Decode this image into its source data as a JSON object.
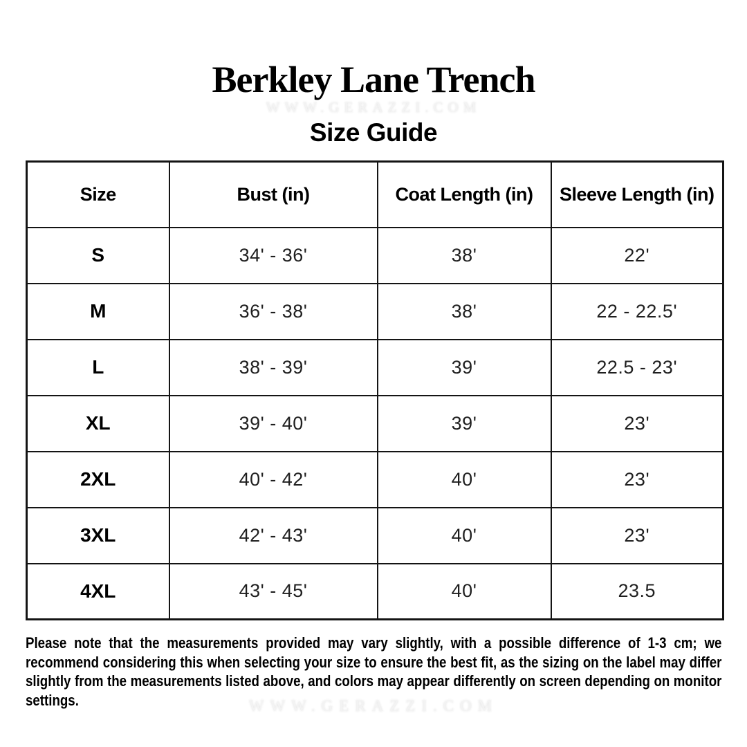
{
  "header": {
    "title": "Berkley Lane Trench",
    "subtitle": "Size Guide",
    "watermark": "WWW.GERAZZI.COM"
  },
  "table": {
    "headers": [
      "Size",
      "Bust (in)",
      "Coat Length (in)",
      "Sleeve Length (in)"
    ],
    "rows": [
      {
        "size": "S",
        "bust": "34' - 36'",
        "coat": "38'",
        "sleeve": "22'"
      },
      {
        "size": "M",
        "bust": "36' - 38'",
        "coat": "38'",
        "sleeve": "22 - 22.5'"
      },
      {
        "size": "L",
        "bust": "38' - 39'",
        "coat": "39'",
        "sleeve": "22.5 - 23'"
      },
      {
        "size": "XL",
        "bust": "39' - 40'",
        "coat": "39'",
        "sleeve": "23'"
      },
      {
        "size": "2XL",
        "bust": "40' - 42'",
        "coat": "40'",
        "sleeve": "23'"
      },
      {
        "size": "3XL",
        "bust": "42' - 43'",
        "coat": "40'",
        "sleeve": "23'"
      },
      {
        "size": "4XL",
        "bust": "43' - 45'",
        "coat": "40'",
        "sleeve": "23.5"
      }
    ]
  },
  "note": "Please note that the measurements provided may vary slightly, with a possible difference of 1-3 cm; we recommend considering this when selecting your size to ensure the best fit, as the sizing on the label may differ slightly from the measurements listed above, and colors may appear differently on screen depending on monitor settings.",
  "footer": {
    "watermark": "WWW.GERAZZI.COM"
  },
  "colors": {
    "background": "#ffffff",
    "text": "#000000",
    "border": "#141414",
    "watermark": "#f3f3f3"
  }
}
